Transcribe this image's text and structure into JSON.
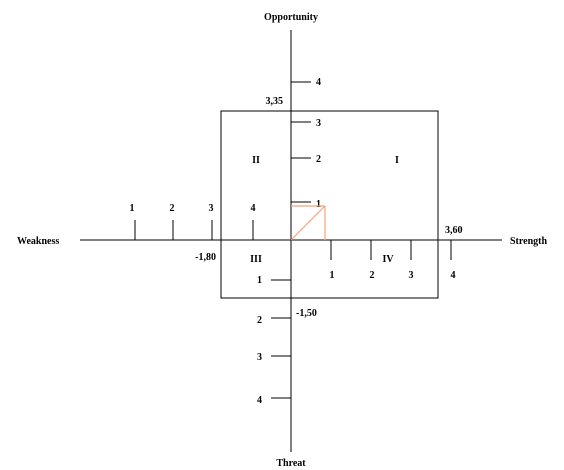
{
  "axes": {
    "top": "Opportunity",
    "bottom": "Threat",
    "left": "Weakness",
    "right": "Strength"
  },
  "quadrants": {
    "q1": "I",
    "q2": "II",
    "q3": "III",
    "q4": "IV"
  },
  "opportunity_ticks": [
    "4",
    "3",
    "2",
    "1"
  ],
  "threat_ticks": [
    "1",
    "2",
    "3",
    "4"
  ],
  "weakness_ticks": [
    "1",
    "2",
    "3",
    "4"
  ],
  "strength_ticks": [
    "1",
    "2",
    "3",
    "4"
  ],
  "values": {
    "opportunity": "3,35",
    "threat": "-1,50",
    "weakness": "-1,80",
    "strength": "3,60"
  },
  "colors": {
    "highlight": "#f2a57a"
  }
}
